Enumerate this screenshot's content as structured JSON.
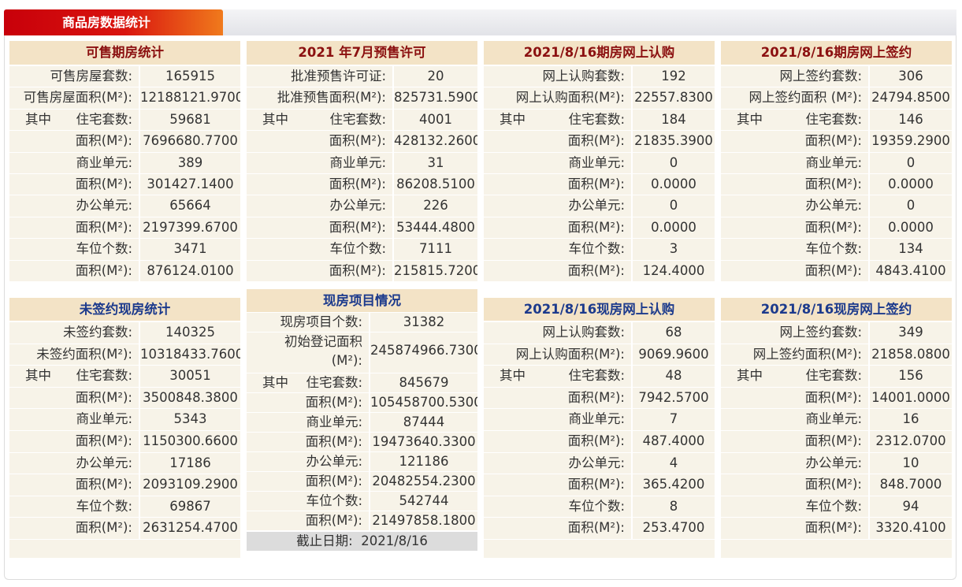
{
  "header": {
    "title": "商品房数据统计"
  },
  "panels": [
    {
      "title": "可售期房统计",
      "rows": [
        {
          "label": "可售房屋套数:",
          "value": "165915"
        },
        {
          "label": "可售房屋面积(M²):",
          "value": "12188121.9700"
        },
        {
          "prefix": "其中",
          "label": "住宅套数:",
          "value": "59681"
        },
        {
          "label": "面积(M²):",
          "value": "7696680.7700"
        },
        {
          "label": "商业单元:",
          "value": "389"
        },
        {
          "label": "面积(M²):",
          "value": "301427.1400"
        },
        {
          "label": "办公单元:",
          "value": "65664"
        },
        {
          "label": "面积(M²):",
          "value": "2197399.6700"
        },
        {
          "label": "车位个数:",
          "value": "3471"
        },
        {
          "label": "面积(M²):",
          "value": "876124.0100"
        }
      ]
    },
    {
      "title": "2021 年7月预售许可",
      "rows": [
        {
          "label": "批准预售许可证:",
          "value": "20"
        },
        {
          "label": "批准预售面积(M²):",
          "value": "825731.5900"
        },
        {
          "prefix": "其中",
          "label": "住宅套数:",
          "value": "4001"
        },
        {
          "label": "面积(M²):",
          "value": "428132.2600"
        },
        {
          "label": "商业单元:",
          "value": "31"
        },
        {
          "label": "面积(M²):",
          "value": "86208.5100"
        },
        {
          "label": "办公单元:",
          "value": "226"
        },
        {
          "label": "面积(M²):",
          "value": "53444.4800"
        },
        {
          "label": "车位个数:",
          "value": "7111"
        },
        {
          "label": "面积(M²):",
          "value": "215815.7200"
        }
      ]
    },
    {
      "title": "2021/8/16期房网上认购",
      "rows": [
        {
          "label": "网上认购套数:",
          "value": "192"
        },
        {
          "label": "网上认购面积(M²):",
          "value": "22557.8300"
        },
        {
          "prefix": "其中",
          "label": "住宅套数:",
          "value": "184"
        },
        {
          "label": "面积(M²):",
          "value": "21835.3900"
        },
        {
          "label": "商业单元:",
          "value": "0"
        },
        {
          "label": "面积(M²):",
          "value": "0.0000"
        },
        {
          "label": "办公单元:",
          "value": "0"
        },
        {
          "label": "面积(M²):",
          "value": "0.0000"
        },
        {
          "label": "车位个数:",
          "value": "3"
        },
        {
          "label": "面积(M²):",
          "value": "124.4000"
        }
      ]
    },
    {
      "title": "2021/8/16期房网上签约",
      "rows": [
        {
          "label": "网上签约套数:",
          "value": "306"
        },
        {
          "label": "网上签约面积 (M²):",
          "value": "24794.8500"
        },
        {
          "prefix": "其中",
          "label": "住宅套数:",
          "value": "146"
        },
        {
          "label": "面积(M²):",
          "value": "19359.2900"
        },
        {
          "label": "商业单元:",
          "value": "0"
        },
        {
          "label": "面积(M²):",
          "value": "0.0000"
        },
        {
          "label": "办公单元:",
          "value": "0"
        },
        {
          "label": "面积(M²):",
          "value": "0.0000"
        },
        {
          "label": "车位个数:",
          "value": "134"
        },
        {
          "label": "面积(M²):",
          "value": "4843.4100"
        }
      ]
    },
    {
      "title": "未签约现房统计",
      "rows": [
        {
          "label": "未签约套数:",
          "value": "140325"
        },
        {
          "label": "未签约面积(M²):",
          "value": "10318433.7600"
        },
        {
          "prefix": "其中",
          "label": "住宅套数:",
          "value": "30051"
        },
        {
          "label": "面积(M²):",
          "value": "3500848.3800"
        },
        {
          "label": "商业单元:",
          "value": "5343"
        },
        {
          "label": "面积(M²):",
          "value": "1150300.6600"
        },
        {
          "label": "办公单元:",
          "value": "17186"
        },
        {
          "label": "面积(M²):",
          "value": "2093109.2900"
        },
        {
          "label": "车位个数:",
          "value": "69867"
        },
        {
          "label": "面积(M²):",
          "value": "2631254.4700"
        }
      ]
    },
    {
      "title": "现房项目情况",
      "rows": [
        {
          "label": "现房项目个数:",
          "value": "31382"
        },
        {
          "label": "初始登记面积(M²):",
          "value": "245874966.7300"
        },
        {
          "prefix": "其中",
          "label": "住宅套数:",
          "value": "845679"
        },
        {
          "label": "面积(M²):",
          "value": "105458700.5300"
        },
        {
          "label": "商业单元:",
          "value": "87444"
        },
        {
          "label": "面积(M²):",
          "value": "19473640.3300"
        },
        {
          "label": "办公单元:",
          "value": "121186"
        },
        {
          "label": "面积(M²):",
          "value": "20482554.2300"
        },
        {
          "label": "车位个数:",
          "value": "542744"
        },
        {
          "label": "面积(M²):",
          "value": "21497858.1800"
        }
      ],
      "footer": "截止日期:  2021/8/16"
    },
    {
      "title": "2021/8/16现房网上认购",
      "rows": [
        {
          "label": "网上认购套数:",
          "value": "68"
        },
        {
          "label": "网上认购面积(M²):",
          "value": "9069.9600"
        },
        {
          "prefix": "其中",
          "label": "住宅套数:",
          "value": "48"
        },
        {
          "label": "面积(M²):",
          "value": "7942.5700"
        },
        {
          "label": "商业单元:",
          "value": "7"
        },
        {
          "label": "面积(M²):",
          "value": "487.4000"
        },
        {
          "label": "办公单元:",
          "value": "4"
        },
        {
          "label": "面积(M²):",
          "value": "365.4200"
        },
        {
          "label": "车位个数:",
          "value": "8"
        },
        {
          "label": "面积(M²):",
          "value": "253.4700"
        }
      ]
    },
    {
      "title": "2021/8/16现房网上签约",
      "rows": [
        {
          "label": "网上签约套数:",
          "value": "349"
        },
        {
          "label": "网上签约面积(M²):",
          "value": "21858.0800"
        },
        {
          "prefix": "其中",
          "label": "住宅套数:",
          "value": "156"
        },
        {
          "label": "面积(M²):",
          "value": "14001.0000"
        },
        {
          "label": "商业单元:",
          "value": "16"
        },
        {
          "label": "面积(M²):",
          "value": "2312.0700"
        },
        {
          "label": "办公单元:",
          "value": "10"
        },
        {
          "label": "面积(M²):",
          "value": "848.7000"
        },
        {
          "label": "车位个数:",
          "value": "94"
        },
        {
          "label": "面积(M²):",
          "value": "3320.4100"
        }
      ]
    }
  ]
}
